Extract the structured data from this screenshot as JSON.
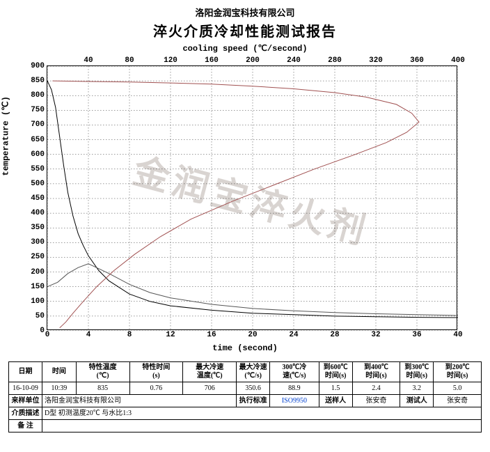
{
  "header": {
    "company": "洛阳金润宝科技有限公司",
    "title": "淬火介质冷却性能测试报告"
  },
  "watermark": "金润宝淬火剂",
  "axes": {
    "top_label": "cooling speed (℃/second)",
    "bottom_label": "time (second)",
    "left_label": "temperature (℃)",
    "y": {
      "min": 0,
      "max": 900,
      "ticks": [
        0,
        50,
        100,
        150,
        200,
        250,
        300,
        350,
        400,
        450,
        500,
        550,
        600,
        650,
        700,
        750,
        800,
        850,
        900
      ]
    },
    "x_bottom": {
      "min": 0,
      "max": 40,
      "ticks": [
        0,
        4,
        8,
        12,
        16,
        20,
        24,
        28,
        32,
        36,
        40
      ]
    },
    "x_top": {
      "min": 0,
      "max": 400,
      "ticks": [
        40,
        80,
        120,
        160,
        200,
        240,
        280,
        320,
        360,
        400
      ]
    }
  },
  "grid_color": "#000",
  "curves": {
    "cooling_time": {
      "color": "#000",
      "width": 1,
      "points_xy": [
        [
          0,
          850
        ],
        [
          0.4,
          820
        ],
        [
          0.8,
          760
        ],
        [
          1.2,
          660
        ],
        [
          1.6,
          560
        ],
        [
          2,
          470
        ],
        [
          2.5,
          390
        ],
        [
          3,
          330
        ],
        [
          3.5,
          290
        ],
        [
          4,
          255
        ],
        [
          5,
          205
        ],
        [
          6,
          170
        ],
        [
          8,
          125
        ],
        [
          10,
          100
        ],
        [
          12,
          85
        ],
        [
          16,
          70
        ],
        [
          20,
          60
        ],
        [
          24,
          55
        ],
        [
          28,
          50
        ],
        [
          32,
          48
        ],
        [
          36,
          46
        ],
        [
          40,
          45
        ]
      ]
    },
    "cooling_speed": {
      "color": "#a05050",
      "width": 1,
      "points_speed_temp": [
        [
          5,
          850
        ],
        [
          40,
          848
        ],
        [
          80,
          846
        ],
        [
          120,
          843
        ],
        [
          160,
          839
        ],
        [
          200,
          832
        ],
        [
          240,
          823
        ],
        [
          280,
          810
        ],
        [
          310,
          795
        ],
        [
          340,
          770
        ],
        [
          355,
          740
        ],
        [
          362,
          710
        ],
        [
          350,
          675
        ],
        [
          330,
          640
        ],
        [
          300,
          600
        ],
        [
          260,
          550
        ],
        [
          220,
          495
        ],
        [
          180,
          440
        ],
        [
          140,
          380
        ],
        [
          110,
          320
        ],
        [
          85,
          260
        ],
        [
          65,
          205
        ],
        [
          48,
          150
        ],
        [
          35,
          100
        ],
        [
          25,
          60
        ],
        [
          18,
          30
        ],
        [
          12,
          10
        ]
      ]
    },
    "third": {
      "color": "#555",
      "width": 1,
      "points_xy": [
        [
          0,
          150
        ],
        [
          1,
          165
        ],
        [
          2,
          195
        ],
        [
          3,
          215
        ],
        [
          4,
          228
        ],
        [
          6,
          195
        ],
        [
          8,
          158
        ],
        [
          10,
          130
        ],
        [
          12,
          112
        ],
        [
          16,
          90
        ],
        [
          20,
          76
        ],
        [
          24,
          68
        ],
        [
          28,
          62
        ],
        [
          32,
          58
        ],
        [
          36,
          55
        ],
        [
          40,
          52
        ]
      ]
    }
  },
  "table": {
    "headers": [
      "日期",
      "时间",
      "特性温度\n(℃)",
      "特性时间\n(s)",
      "最大冷速\n温度(℃)",
      "最大冷速\n(℃/s)",
      "300℃冷\n速(℃/s)",
      "到600℃\n时间(s)",
      "到400℃\n时间(s)",
      "到300℃\n时间(s)",
      "到200℃\n时间(s)"
    ],
    "row1": [
      "16-10-09",
      "10:39",
      "835",
      "0.76",
      "706",
      "350.6",
      "88.9",
      "1.5",
      "2.4",
      "3.2",
      "5.0"
    ],
    "row2_h": "来样单位",
    "row2_v": "洛阳金润宝科技有限公司",
    "row2_std_h": "执行标准",
    "row2_std_v": "ISO9950",
    "row2_sender_h": "送样人",
    "row2_sender_v": "张安奇",
    "row2_tester_h": "测试人",
    "row2_tester_v": "张安奇",
    "row3_h": "介质描述",
    "row3_v": "D型   初测温度20℃     与水比1:3",
    "row4_h": "备  注",
    "row4_v": ""
  }
}
